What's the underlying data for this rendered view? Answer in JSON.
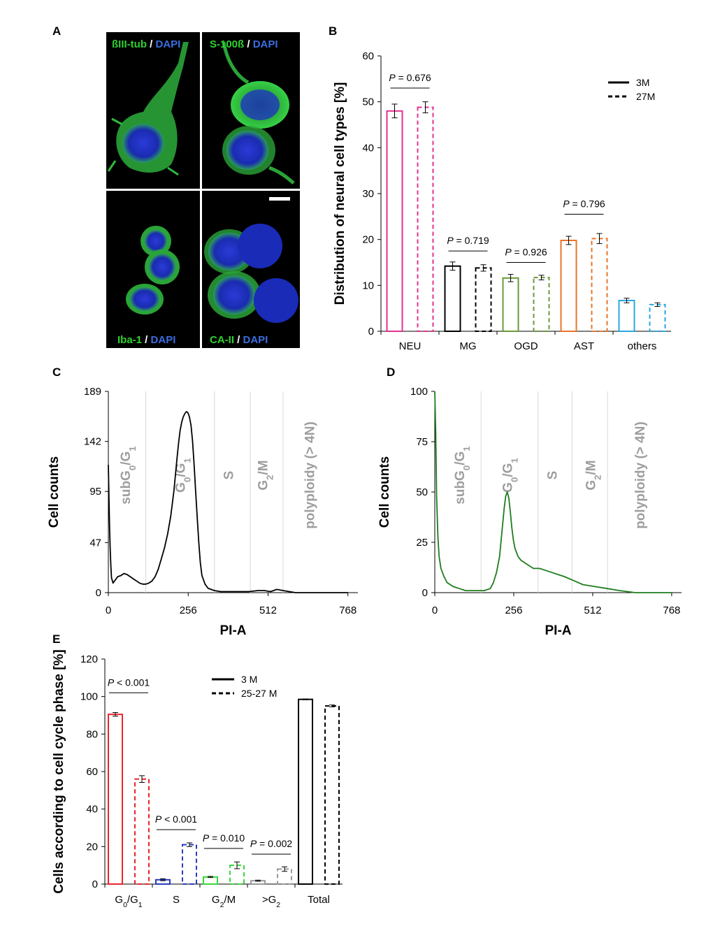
{
  "colors": {
    "neu": "#e0338f",
    "mg": "#000000",
    "ogd": "#6a9a3a",
    "ast": "#e8742a",
    "others": "#29a8e0",
    "g0g1": "#e8262b",
    "s": "#2a3bc0",
    "g2m": "#3ad63a",
    "gtg2": "#9a9a9a",
    "total": "#000000",
    "histC": "#000000",
    "histD": "#1e7d1e",
    "phaseText": "#9e9e9e",
    "microGreen": "#2fd02f",
    "microBlue": "#3b6de0"
  },
  "panels": {
    "A": {
      "letter": "A",
      "cells": [
        {
          "stain": "ßIII-tub",
          "sep": " / ",
          "dapi": "DAPI"
        },
        {
          "stain": "S-100ß",
          "sep": " / ",
          "dapi": "DAPI"
        },
        {
          "stain": "Iba-1",
          "sep": " / ",
          "dapi": "DAPI"
        },
        {
          "stain": "CA-II",
          "sep": " / ",
          "dapi": "DAPI"
        }
      ]
    },
    "B": {
      "letter": "B"
    },
    "C": {
      "letter": "C"
    },
    "D": {
      "letter": "D"
    },
    "E": {
      "letter": "E"
    }
  },
  "chart_data": [
    {
      "id": "B",
      "type": "bar",
      "ylabel": "Distribution of neural cell types [%]",
      "xlabel": "",
      "ylim": [
        0,
        60
      ],
      "yticks": [
        0,
        10,
        20,
        30,
        40,
        50,
        60
      ],
      "categories": [
        "NEU",
        "MG",
        "OGD",
        "AST",
        "others"
      ],
      "legend": {
        "position": "top-right",
        "entries": [
          "3M",
          "27M"
        ]
      },
      "series": [
        {
          "name": "3M",
          "style": "solid",
          "values": [
            48.0,
            14.2,
            11.6,
            19.8,
            6.7
          ],
          "errors": [
            1.5,
            0.9,
            0.8,
            0.9,
            0.5
          ]
        },
        {
          "name": "27M",
          "style": "dashed",
          "values": [
            48.8,
            13.8,
            11.7,
            20.2,
            5.8
          ],
          "errors": [
            1.2,
            0.7,
            0.5,
            1.1,
            0.4
          ]
        }
      ],
      "pvalues": [
        {
          "category": "NEU",
          "p_letter": "P",
          "text": " = 0.676",
          "y": 53
        },
        {
          "category": "MG",
          "p_letter": "P",
          "text": " = 0.719",
          "y": 17.5
        },
        {
          "category": "OGD",
          "p_letter": "P",
          "text": " = 0.926",
          "y": 15
        },
        {
          "category": "AST",
          "p_letter": "P",
          "text": " = 0.796",
          "y": 25.5
        }
      ]
    },
    {
      "id": "C",
      "type": "line",
      "xlabel": "PI-A",
      "ylabel": "Cell counts",
      "xlim": [
        0,
        800
      ],
      "ylim": [
        0,
        189
      ],
      "xticks": [
        0,
        256,
        512,
        768
      ],
      "yticks": [
        0,
        47,
        95,
        142,
        189
      ],
      "dividers": [
        120,
        340,
        455,
        560
      ],
      "phases": [
        {
          "label": "subG",
          "sub": "0",
          "mid": "/G",
          "sub2": "1",
          "x": 70
        },
        {
          "label": "G",
          "sub": "0",
          "mid": "/G",
          "sub2": "1",
          "x": 245
        },
        {
          "label": "S",
          "sub": "",
          "mid": "",
          "sub2": "",
          "x": 400
        },
        {
          "label": "G",
          "sub": "2",
          "mid": "/M",
          "sub2": "",
          "x": 510
        },
        {
          "label": "polyploidy  (> 4N)",
          "sub": "",
          "mid": "",
          "sub2": "",
          "x": 660
        }
      ],
      "series": [
        {
          "name": "3 M",
          "x": [
            0,
            2,
            4,
            6,
            8,
            10,
            15,
            20,
            25,
            30,
            40,
            50,
            60,
            70,
            80,
            90,
            100,
            110,
            120,
            130,
            140,
            150,
            160,
            170,
            180,
            190,
            200,
            210,
            215,
            220,
            225,
            230,
            235,
            240,
            245,
            250,
            255,
            260,
            265,
            270,
            275,
            280,
            285,
            290,
            295,
            300,
            310,
            320,
            340,
            360,
            400,
            450,
            480,
            500,
            520,
            540,
            560,
            580,
            600,
            650,
            700,
            768
          ],
          "y": [
            120,
            88,
            60,
            40,
            25,
            14,
            9,
            11,
            13,
            15,
            16,
            18,
            17,
            15,
            13,
            11,
            9,
            8,
            8,
            9,
            11,
            15,
            22,
            32,
            42,
            55,
            72,
            95,
            110,
            126,
            140,
            152,
            160,
            165,
            168,
            170,
            169,
            165,
            157,
            142,
            120,
            95,
            70,
            47,
            28,
            16,
            8,
            4,
            2,
            1,
            1,
            1,
            2,
            2,
            1,
            3,
            2,
            1,
            0,
            0,
            0,
            0
          ]
        }
      ]
    },
    {
      "id": "D",
      "type": "line",
      "xlabel": "PI-A",
      "ylabel": "Cell counts",
      "xlim": [
        0,
        800
      ],
      "ylim": [
        0,
        100
      ],
      "xticks": [
        0,
        256,
        512,
        768
      ],
      "yticks": [
        0,
        25,
        50,
        75,
        100
      ],
      "dividers": [
        150,
        335,
        445,
        560
      ],
      "phases": [
        {
          "label": "subG",
          "sub": "0",
          "mid": "/G",
          "sub2": "1",
          "x": 95
        },
        {
          "label": "G",
          "sub": "0",
          "mid": "/G",
          "sub2": "1",
          "x": 250
        },
        {
          "label": "S",
          "sub": "",
          "mid": "",
          "sub2": "",
          "x": 395
        },
        {
          "label": "G",
          "sub": "2",
          "mid": "/M",
          "sub2": "",
          "x": 520
        },
        {
          "label": "polyploidy  (> 4N)",
          "sub": "",
          "mid": "",
          "sub2": "",
          "x": 680
        }
      ],
      "series": [
        {
          "name": "25-27 M",
          "x": [
            0,
            3,
            6,
            10,
            14,
            20,
            30,
            40,
            60,
            80,
            100,
            130,
            160,
            180,
            190,
            200,
            210,
            215,
            220,
            225,
            230,
            235,
            240,
            245,
            250,
            255,
            260,
            270,
            280,
            290,
            300,
            320,
            340,
            360,
            380,
            400,
            420,
            450,
            480,
            520,
            560,
            600,
            650,
            700,
            768
          ],
          "y": [
            100,
            80,
            48,
            28,
            18,
            12,
            8,
            5,
            3,
            2,
            1,
            1,
            1,
            2,
            5,
            10,
            18,
            26,
            34,
            42,
            48,
            50,
            47,
            40,
            32,
            26,
            22,
            18,
            16,
            15,
            14,
            12,
            12,
            11,
            10,
            9,
            8,
            6,
            4,
            3,
            2,
            1,
            0,
            0,
            0
          ]
        }
      ]
    },
    {
      "id": "E",
      "type": "bar",
      "ylabel": "Cells according to cell cycle phase [%]",
      "xlabel": "",
      "ylim": [
        0,
        120
      ],
      "yticks": [
        0,
        20,
        40,
        60,
        80,
        100,
        120
      ],
      "categories": [
        {
          "base": "G",
          "sub": "0",
          "mid": "/G",
          "sub2": "1"
        },
        {
          "base": "S",
          "sub": "",
          "mid": "",
          "sub2": ""
        },
        {
          "base": "G",
          "sub": "2",
          "mid": "/M",
          "sub2": ""
        },
        {
          "base": ">G",
          "sub": "2",
          "mid": "",
          "sub2": ""
        },
        {
          "base": "Total",
          "sub": "",
          "mid": "",
          "sub2": ""
        }
      ],
      "legend": {
        "position": "top-center",
        "entries": [
          "3 M",
          "25-27 M"
        ]
      },
      "series": [
        {
          "name": "3 M",
          "style": "solid",
          "values": [
            90.5,
            2.3,
            3.8,
            1.8,
            98.5
          ],
          "errors": [
            1.0,
            0.5,
            0.3,
            0.3,
            0.2
          ]
        },
        {
          "name": "25-27 M",
          "style": "dashed",
          "values": [
            56.0,
            21.0,
            10.0,
            8.0,
            95.0
          ],
          "errors": [
            1.8,
            1.0,
            1.8,
            1.2,
            0.5
          ]
        }
      ],
      "pvalues": [
        {
          "category": 0,
          "p_letter": "P",
          "text": " < 0.001",
          "y": 102
        },
        {
          "category": 1,
          "p_letter": "P",
          "text": " < 0.001",
          "y": 29
        },
        {
          "category": 2,
          "p_letter": "P",
          "text": " = 0.010",
          "y": 19
        },
        {
          "category": 3,
          "p_letter": "P",
          "text": " = 0.002",
          "y": 16
        }
      ]
    }
  ]
}
